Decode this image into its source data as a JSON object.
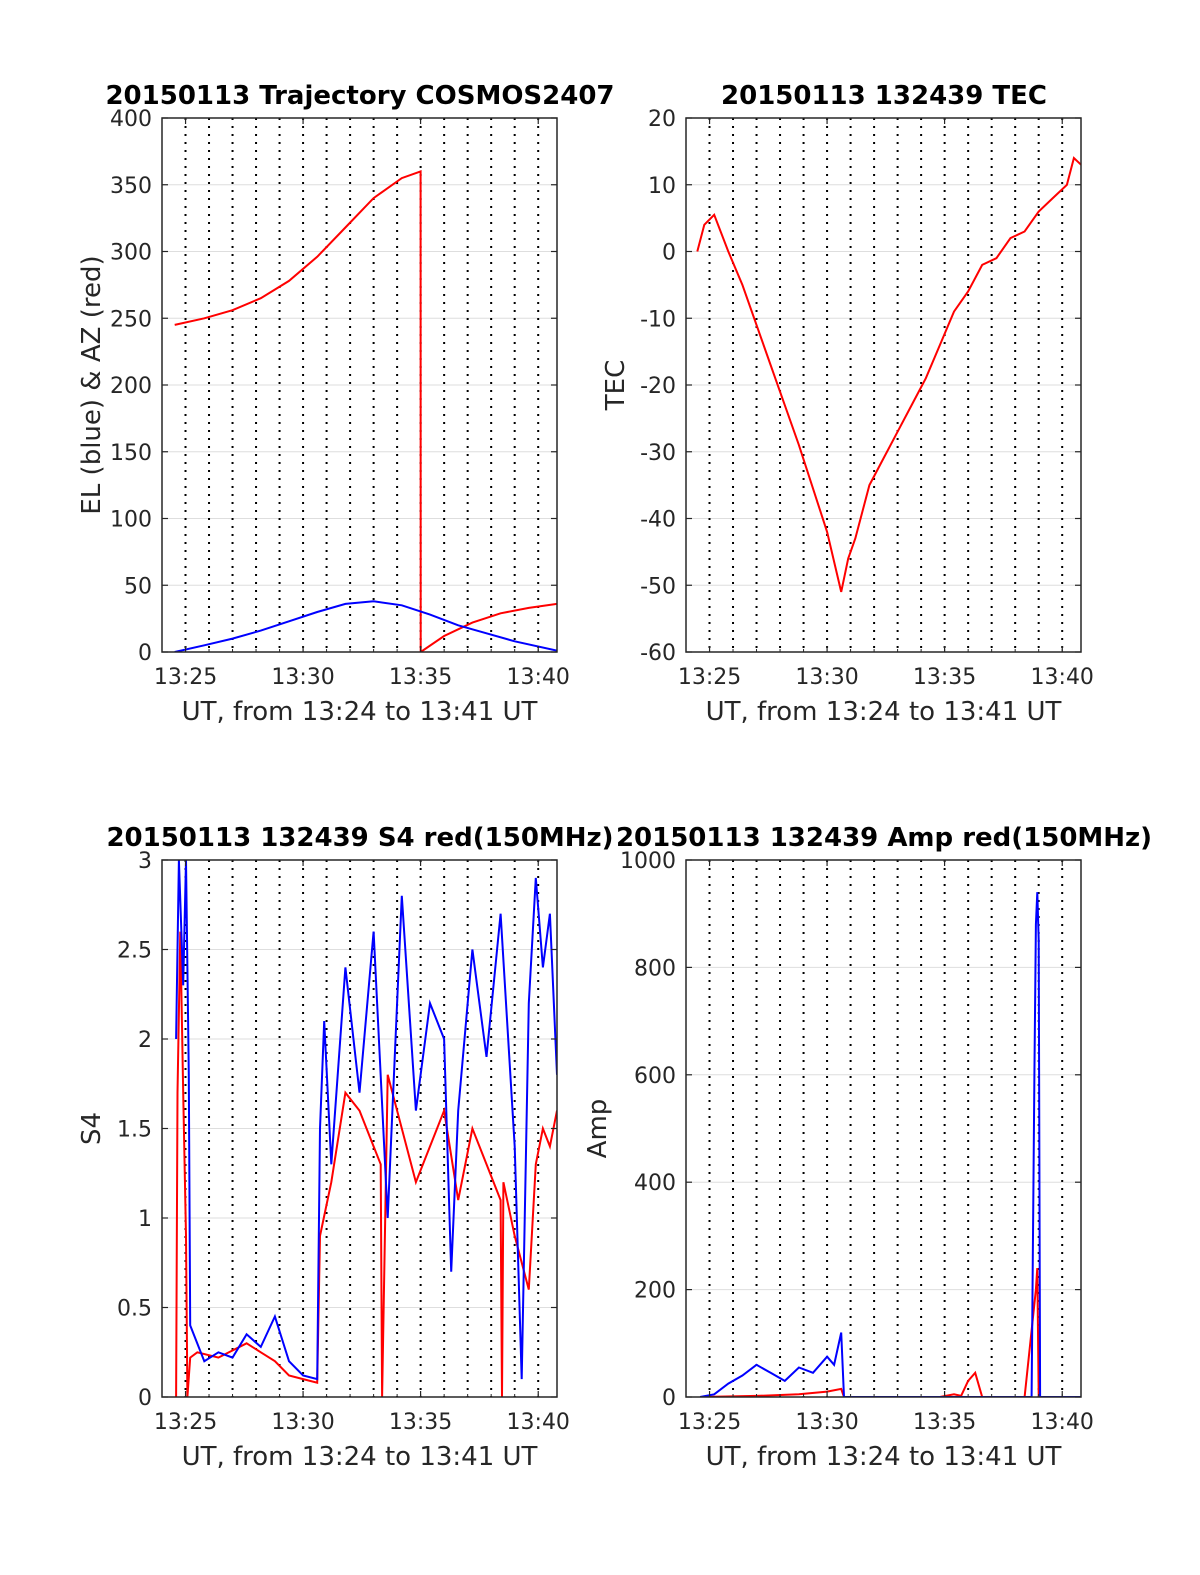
{
  "figure": {
    "background": "#ffffff"
  },
  "chart_data": [
    {
      "type": "line",
      "title": "20150113 Trajectory COSMOS2407",
      "xlabel": "UT, from 13:24 to 13:41 UT",
      "ylabel": "EL (blue) & AZ (red)",
      "xlim": [
        13.4,
        13.68
      ],
      "ylim": [
        0,
        400
      ],
      "xticks": [
        13.4167,
        13.5,
        13.5833,
        13.6667
      ],
      "xticklabels": [
        "13:25",
        "13:30",
        "13:35",
        "13:40"
      ],
      "yticks": [
        0,
        50,
        100,
        150,
        200,
        250,
        300,
        350,
        400
      ],
      "grid": true,
      "series": [
        {
          "color": "#ff0000",
          "x": [
            13.409,
            13.43,
            13.45,
            13.47,
            13.49,
            13.51,
            13.53,
            13.55,
            13.57,
            13.5833,
            13.5834,
            13.6,
            13.62,
            13.64,
            13.66,
            13.68
          ],
          "values": [
            245,
            250,
            256,
            265,
            278,
            296,
            318,
            340,
            355,
            360,
            0,
            12,
            22,
            29,
            33,
            36
          ]
        },
        {
          "color": "#0000ff",
          "x": [
            13.409,
            13.43,
            13.45,
            13.47,
            13.49,
            13.51,
            13.53,
            13.55,
            13.57,
            13.59,
            13.61,
            13.63,
            13.65,
            13.68
          ],
          "values": [
            0,
            5,
            10,
            16,
            23,
            30,
            36,
            38,
            35,
            28,
            20,
            14,
            8,
            1
          ]
        }
      ]
    },
    {
      "type": "line",
      "title": "20150113 132439 TEC",
      "xlabel": "UT, from 13:24 to 13:41 UT",
      "ylabel": "TEC",
      "xlim": [
        13.4,
        13.68
      ],
      "ylim": [
        -60,
        20
      ],
      "xticks": [
        13.4167,
        13.5,
        13.5833,
        13.6667
      ],
      "xticklabels": [
        "13:25",
        "13:30",
        "13:35",
        "13:40"
      ],
      "yticks": [
        -60,
        -50,
        -40,
        -30,
        -20,
        -10,
        0,
        10,
        20
      ],
      "grid": true,
      "series": [
        {
          "color": "#ff0000",
          "x": [
            13.408,
            13.413,
            13.42,
            13.43,
            13.44,
            13.46,
            13.48,
            13.5,
            13.51,
            13.515,
            13.52,
            13.53,
            13.54,
            13.55,
            13.56,
            13.57,
            13.58,
            13.59,
            13.6,
            13.61,
            13.62,
            13.63,
            13.64,
            13.65,
            13.66,
            13.67,
            13.675,
            13.68
          ],
          "values": [
            0,
            4,
            5.5,
            0,
            -5,
            -17,
            -29,
            -42,
            -51,
            -46,
            -43,
            -35,
            -31,
            -27,
            -23,
            -19,
            -14,
            -9,
            -6,
            -2,
            -1,
            2,
            3,
            6,
            8,
            10,
            14,
            13
          ]
        }
      ]
    },
    {
      "type": "line",
      "title": "20150113 132439 S4 red(150MHz)",
      "xlabel": "UT, from 13:24 to 13:41 UT",
      "ylabel": "S4",
      "xlim": [
        13.4,
        13.68
      ],
      "ylim": [
        0,
        3
      ],
      "xticks": [
        13.4167,
        13.5,
        13.5833,
        13.6667
      ],
      "xticklabels": [
        "13:25",
        "13:30",
        "13:35",
        "13:40"
      ],
      "yticks": [
        0,
        0.5,
        1,
        1.5,
        2,
        2.5,
        3
      ],
      "yticklabels": [
        "0",
        "0.5",
        "1",
        "1.5",
        "2",
        "2.5",
        "3"
      ],
      "grid": true,
      "series": [
        {
          "color": "#ff0000",
          "x": [
            13.41,
            13.411,
            13.413,
            13.415,
            13.417,
            13.418,
            13.42,
            13.425,
            13.44,
            13.46,
            13.47,
            13.48,
            13.49,
            13.5,
            13.51,
            13.512,
            13.52,
            13.53,
            13.54,
            13.55,
            13.555,
            13.556,
            13.56,
            13.57,
            13.58,
            13.59,
            13.6,
            13.61,
            13.62,
            13.63,
            13.64,
            13.641,
            13.642,
            13.65,
            13.66,
            13.665,
            13.67,
            13.675,
            13.68
          ],
          "values": [
            0,
            1.7,
            2.6,
            1.7,
            0.9,
            0,
            0.22,
            0.25,
            0.22,
            0.3,
            0.25,
            0.2,
            0.12,
            0.1,
            0.08,
            0.9,
            1.2,
            1.7,
            1.6,
            1.4,
            1.3,
            0,
            1.8,
            1.5,
            1.2,
            1.4,
            1.6,
            1.1,
            1.5,
            1.3,
            1.1,
            0,
            1.2,
            0.9,
            0.6,
            1.3,
            1.5,
            1.4,
            1.6
          ]
        },
        {
          "color": "#0000ff",
          "x": [
            13.41,
            13.412,
            13.415,
            13.417,
            13.419,
            13.42,
            13.43,
            13.44,
            13.45,
            13.46,
            13.47,
            13.48,
            13.49,
            13.5,
            13.51,
            13.512,
            13.515,
            13.52,
            13.53,
            13.54,
            13.55,
            13.56,
            13.57,
            13.58,
            13.59,
            13.6,
            13.605,
            13.61,
            13.62,
            13.63,
            13.64,
            13.65,
            13.655,
            13.66,
            13.665,
            13.67,
            13.675,
            13.68
          ],
          "values": [
            2.0,
            3.0,
            2.3,
            3.0,
            1.8,
            0.4,
            0.2,
            0.25,
            0.22,
            0.35,
            0.28,
            0.45,
            0.2,
            0.12,
            0.1,
            1.5,
            2.1,
            1.3,
            2.4,
            1.7,
            2.6,
            1.0,
            2.8,
            1.6,
            2.2,
            2.0,
            0.7,
            1.6,
            2.5,
            1.9,
            2.7,
            1.4,
            0.1,
            2.2,
            2.9,
            2.4,
            2.7,
            1.8
          ]
        }
      ]
    },
    {
      "type": "line",
      "title": "20150113 132439 Amp red(150MHz)",
      "xlabel": "UT, from 13:24 to 13:41 UT",
      "ylabel": "Amp",
      "xlim": [
        13.4,
        13.68
      ],
      "ylim": [
        0,
        1000
      ],
      "xticks": [
        13.4167,
        13.5,
        13.5833,
        13.6667
      ],
      "xticklabels": [
        "13:25",
        "13:30",
        "13:35",
        "13:40"
      ],
      "yticks": [
        0,
        200,
        400,
        600,
        800,
        1000
      ],
      "grid": true,
      "series": [
        {
          "color": "#ff0000",
          "x": [
            13.41,
            13.45,
            13.48,
            13.5,
            13.51,
            13.512,
            13.52,
            13.58,
            13.59,
            13.595,
            13.6,
            13.605,
            13.61,
            13.64,
            13.648,
            13.649,
            13.65,
            13.68
          ],
          "values": [
            0,
            2,
            5,
            10,
            15,
            0,
            0,
            0,
            5,
            2,
            30,
            45,
            0,
            0,
            200,
            240,
            0,
            0
          ]
        },
        {
          "color": "#0000ff",
          "x": [
            13.41,
            13.42,
            13.43,
            13.44,
            13.45,
            13.46,
            13.47,
            13.48,
            13.49,
            13.5,
            13.505,
            13.51,
            13.512,
            13.52,
            13.64,
            13.645,
            13.647,
            13.648,
            13.649,
            13.65,
            13.651,
            13.66,
            13.68
          ],
          "values": [
            0,
            5,
            25,
            40,
            60,
            45,
            30,
            55,
            45,
            75,
            60,
            120,
            0,
            0,
            0,
            0,
            600,
            880,
            940,
            850,
            0,
            0,
            0
          ]
        }
      ]
    }
  ]
}
